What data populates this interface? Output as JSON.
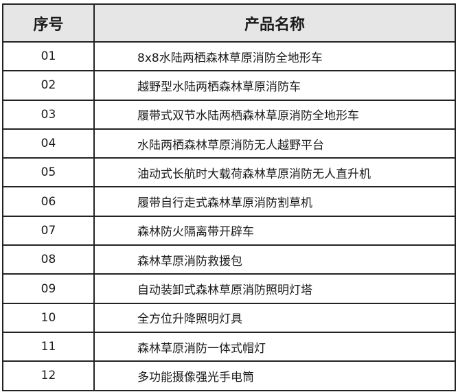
{
  "table": {
    "headers": [
      "序号",
      "产品名称"
    ],
    "rows": [
      {
        "no": "01",
        "name": "8x8水陆两栖森林草原消防全地形车"
      },
      {
        "no": "02",
        "name": "越野型水陆两栖森林草原消防车"
      },
      {
        "no": "03",
        "name": "履带式双节水陆两栖森林草原消防全地形车"
      },
      {
        "no": "04",
        "name": "水陆两栖森林草原消防无人越野平台"
      },
      {
        "no": "05",
        "name": "油动式长航时大载荷森林草原消防无人直升机"
      },
      {
        "no": "06",
        "name": "履带自行走式森林草原消防割草机"
      },
      {
        "no": "07",
        "name": "森林防火隔离带开辟车"
      },
      {
        "no": "08",
        "name": "森林草原消防救援包"
      },
      {
        "no": "09",
        "name": "自动装卸式森林草原消防照明灯塔"
      },
      {
        "no": "10",
        "name": "全方位升降照明灯具"
      },
      {
        "no": "11",
        "name": "森林草原消防一体式帽灯"
      },
      {
        "no": "12",
        "name": "多功能摄像强光手电筒"
      }
    ]
  }
}
